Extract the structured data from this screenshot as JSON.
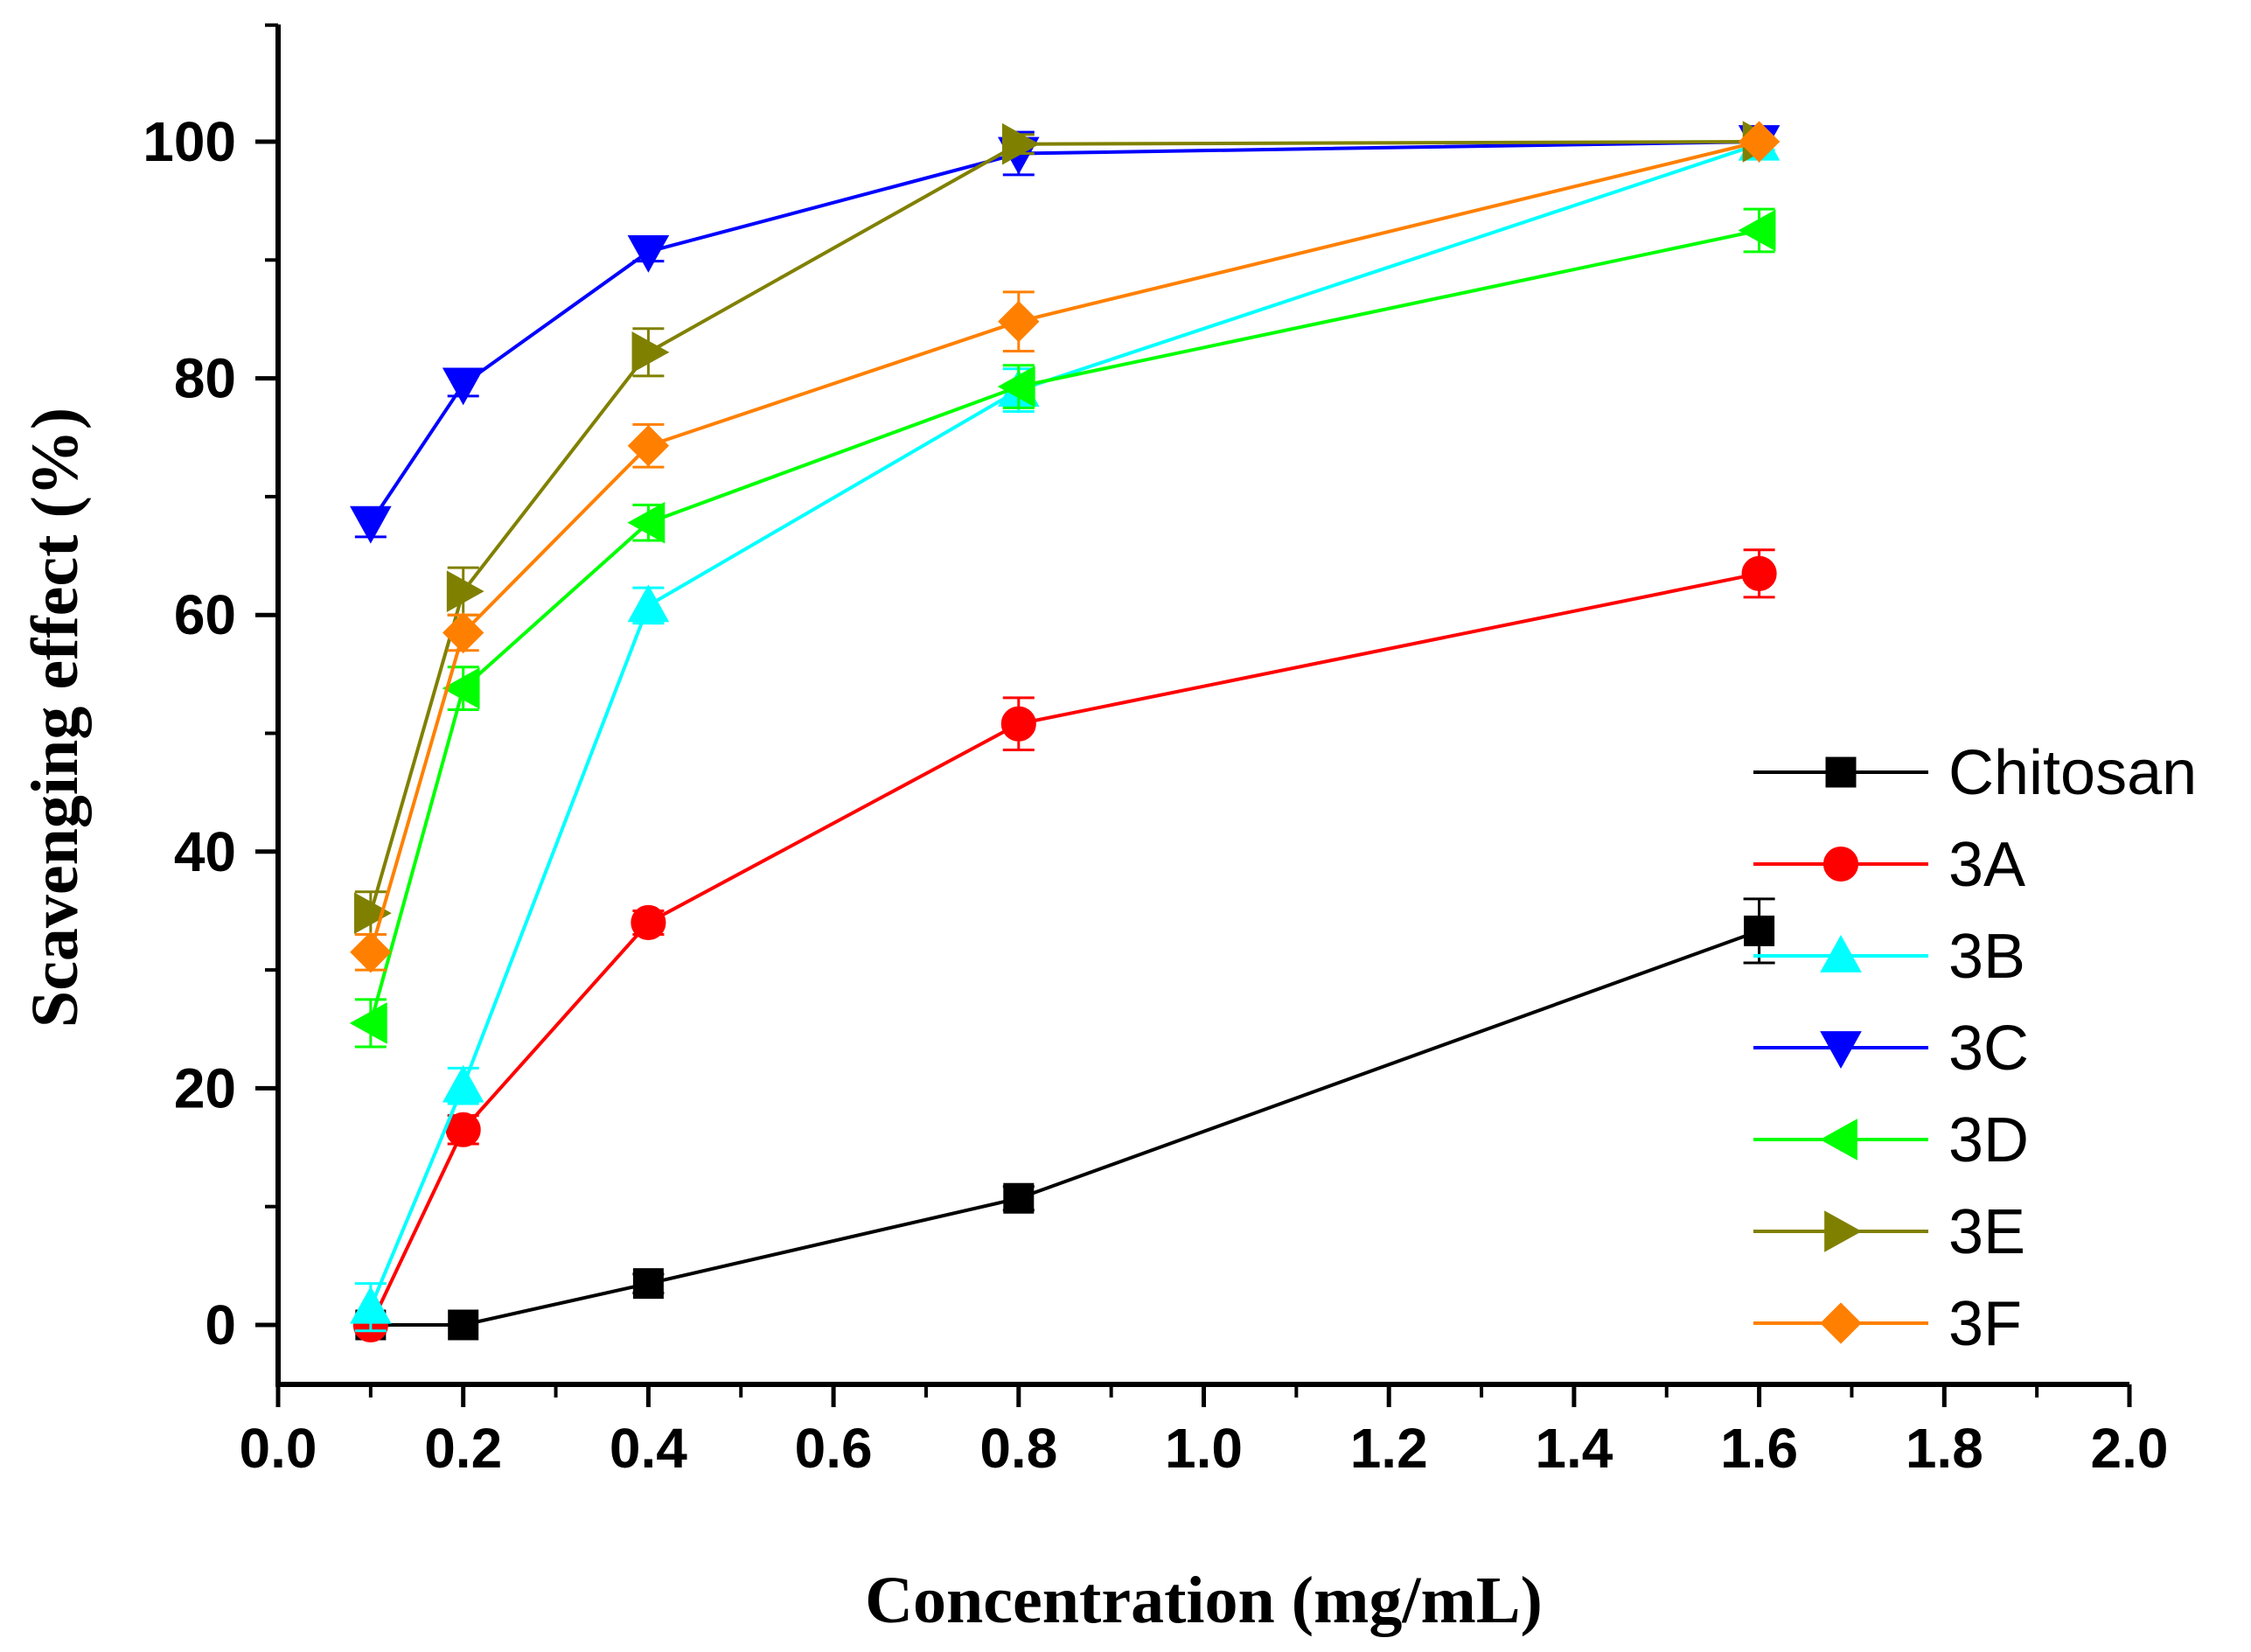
{
  "chart_data": {
    "type": "line",
    "title": "",
    "xlabel": "Concentration (mg/mL)",
    "ylabel": "Scavenging effect (%)",
    "xlim": [
      0.0,
      2.0
    ],
    "ylim": [
      -5,
      110
    ],
    "x_ticks": [
      0.0,
      0.2,
      0.4,
      0.6,
      0.8,
      1.0,
      1.2,
      1.4,
      1.6,
      1.8,
      2.0
    ],
    "x_tick_labels": [
      "0.0",
      "0.2",
      "0.4",
      "0.6",
      "0.8",
      "1.0",
      "1.2",
      "1.4",
      "1.6",
      "1.8",
      "2.0"
    ],
    "y_ticks": [
      0,
      20,
      40,
      60,
      80,
      100
    ],
    "y_tick_labels": [
      "0",
      "20",
      "40",
      "60",
      "80",
      "100"
    ],
    "grid": false,
    "legend_position": "right",
    "x": [
      0.1,
      0.2,
      0.4,
      0.8,
      1.6
    ],
    "series": [
      {
        "name": "Chitosan",
        "color": "#000000",
        "marker": "square",
        "values": [
          0.0,
          0.0,
          3.5,
          10.7,
          33.3
        ],
        "errors": [
          0,
          0,
          0.8,
          1.0,
          2.7
        ]
      },
      {
        "name": "3A",
        "color": "#ff0000",
        "marker": "circle",
        "values": [
          0.0,
          16.5,
          34.0,
          50.8,
          63.5
        ],
        "errors": [
          0.6,
          1.2,
          1.0,
          2.2,
          2.0
        ]
      },
      {
        "name": "3B",
        "color": "#00ffff",
        "marker": "triangle-up",
        "values": [
          1.5,
          20.2,
          60.8,
          79.0,
          99.8
        ],
        "errors": [
          2.0,
          1.5,
          1.5,
          1.8,
          0.5
        ]
      },
      {
        "name": "3C",
        "color": "#0000ff",
        "marker": "triangle-down",
        "values": [
          67.8,
          79.5,
          90.7,
          99.0,
          100.0
        ],
        "errors": [
          1.2,
          1.0,
          0.8,
          1.8,
          0.3
        ]
      },
      {
        "name": "3D",
        "color": "#00ff00",
        "marker": "triangle-left",
        "values": [
          25.5,
          53.8,
          67.8,
          79.3,
          92.5
        ],
        "errors": [
          2.0,
          1.8,
          1.5,
          1.8,
          1.8
        ]
      },
      {
        "name": "3E",
        "color": "#808000",
        "marker": "triangle-right",
        "values": [
          34.8,
          62.0,
          82.2,
          99.8,
          100.0
        ],
        "errors": [
          1.8,
          2.0,
          2.0,
          0.8,
          0.3
        ]
      },
      {
        "name": "3F",
        "color": "#ff8000",
        "marker": "diamond",
        "values": [
          31.5,
          58.5,
          74.3,
          84.8,
          100.0
        ],
        "errors": [
          1.5,
          1.5,
          1.8,
          2.5,
          0.3
        ]
      }
    ]
  }
}
